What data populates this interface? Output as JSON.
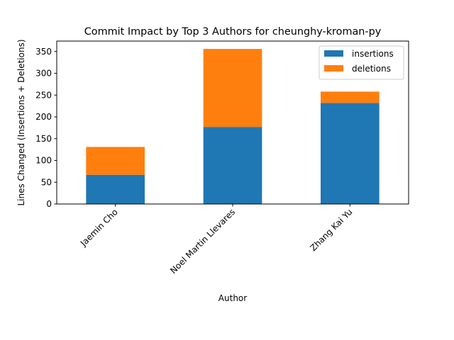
{
  "chart_data": {
    "type": "bar",
    "stacked": true,
    "title": "Commit Impact by Top 3 Authors for cheunghy-kroman-py",
    "xlabel": "Author",
    "ylabel": "Lines Changed (Insertions + Deletions)",
    "categories": [
      "Jaemin Cho",
      "Noel Martin Llevares",
      "Zhang Kai Yu"
    ],
    "series": [
      {
        "name": "insertions",
        "values": [
          67,
          177,
          232
        ],
        "color": "#1f77b4"
      },
      {
        "name": "deletions",
        "values": [
          64,
          179,
          26
        ],
        "color": "#ff7f0e"
      }
    ],
    "ylim": [
      0,
      374
    ],
    "yticks": [
      0,
      50,
      100,
      150,
      200,
      250,
      300,
      350
    ],
    "grid": false,
    "legend_position": "top-right"
  }
}
